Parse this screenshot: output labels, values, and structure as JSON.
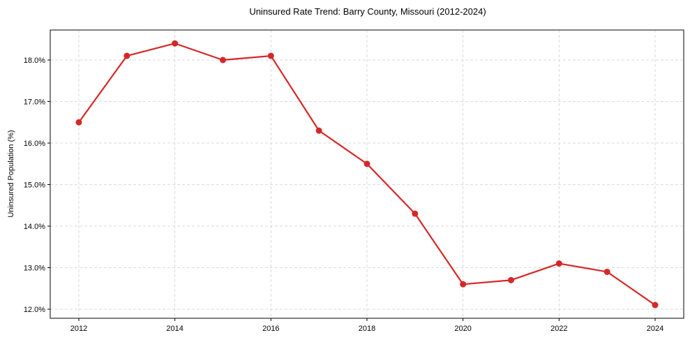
{
  "chart_data": {
    "type": "line",
    "title": "Uninsured Rate Trend: Barry County, Missouri (2012-2024)",
    "xlabel": "",
    "ylabel": "Uninsured Population (%)",
    "x": [
      2012,
      2013,
      2014,
      2015,
      2016,
      2017,
      2018,
      2019,
      2020,
      2021,
      2022,
      2023,
      2024
    ],
    "series": [
      {
        "name": "Uninsured Rate",
        "color": "#d62728",
        "values": [
          16.5,
          18.1,
          18.4,
          18.0,
          18.1,
          16.3,
          15.5,
          14.3,
          12.6,
          12.7,
          13.1,
          12.9,
          12.1
        ]
      }
    ],
    "xticks": [
      "2012",
      "2014",
      "2016",
      "2018",
      "2020",
      "2022",
      "2024"
    ],
    "yticks": [
      "12.0%",
      "13.0%",
      "14.0%",
      "15.0%",
      "16.0%",
      "17.0%",
      "18.0%"
    ],
    "ylim": [
      11.8,
      18.7
    ],
    "xlim": [
      2011.4,
      2024.6
    ],
    "grid": true,
    "legend": null
  }
}
